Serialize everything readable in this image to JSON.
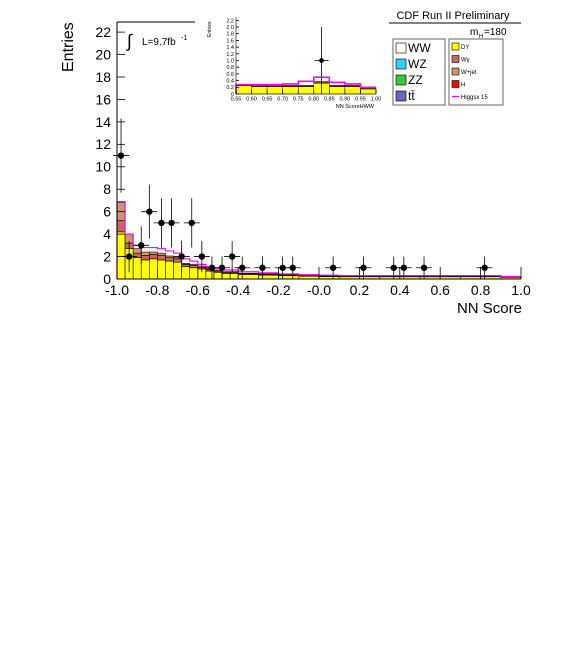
{
  "header": {
    "title": "CDF Run II Preliminary",
    "mass_label": "m",
    "mass_sub": "H",
    "mass_value": "=180"
  },
  "lumi": {
    "integral": "∫",
    "text": "L=9.7fb",
    "exp": "-1"
  },
  "legend": {
    "left": [
      {
        "label": "WW",
        "color": "#ffffff"
      },
      {
        "label": "WZ",
        "color": "#33ccff"
      },
      {
        "label": "ZZ",
        "color": "#33cc33"
      },
      {
        "label": "tt̄",
        "color": "#6666cc"
      }
    ],
    "right": [
      {
        "label": "DY",
        "color": "#ffff00"
      },
      {
        "label": "Wγ",
        "color": "#cc6666"
      },
      {
        "label": "W+jet",
        "color": "#cc9966"
      },
      {
        "label": "H",
        "color": "#ff0000"
      },
      {
        "label": "Higgsx 15",
        "color": "#ff00ff",
        "line": true
      }
    ]
  },
  "chart_data": [
    {
      "type": "bar",
      "xlabel": "NN Score",
      "ylabel": "Entries",
      "xlim": [
        -1.0,
        1.0
      ],
      "ylim": [
        0,
        22.5
      ],
      "xticks": [
        "-1.0",
        "-0.8",
        "-0.6",
        "-0.4",
        "-0.2",
        "-0.0",
        "0.2",
        "0.4",
        "0.6",
        "0.8",
        "1.0"
      ],
      "yticks": [
        "0",
        "2",
        "4",
        "6",
        "8",
        "10",
        "12",
        "14",
        "16",
        "18",
        "20",
        "22"
      ],
      "bin_edges": [
        -1.0,
        -0.96,
        -0.92,
        -0.88,
        -0.84,
        -0.8,
        -0.76,
        -0.72,
        -0.68,
        -0.64,
        -0.6,
        -0.56,
        -0.52,
        -0.48,
        -0.44,
        -0.4,
        -0.3,
        -0.2,
        -0.1,
        0.0,
        0.1,
        0.2,
        0.3,
        0.4,
        0.5,
        0.6,
        0.7,
        0.8,
        0.9,
        1.0
      ],
      "series": [
        {
          "name": "DY",
          "color": "#ffff00",
          "values": [
            4.2,
            2.7,
            1.9,
            1.7,
            1.8,
            1.7,
            1.6,
            1.5,
            1.1,
            1.0,
            0.9,
            0.7,
            0.6,
            0.5,
            0.5,
            0.4,
            0.35,
            0.3,
            0.25,
            0.22,
            0.2,
            0.2,
            0.2,
            0.2,
            0.2,
            0.2,
            0.2,
            0.2,
            0.15
          ]
        },
        {
          "name": "Wγ",
          "color": "#cc6666",
          "values": [
            1.0,
            0.5,
            0.4,
            0.4,
            0.4,
            0.4,
            0.3,
            0.3,
            0.2,
            0.2,
            0.15,
            0.15,
            0.1,
            0.1,
            0.1,
            0.08,
            0.07,
            0.06,
            0.05,
            0.05,
            0.04,
            0.04,
            0.04,
            0.04,
            0.04,
            0.04,
            0.04,
            0.04,
            0.03
          ]
        },
        {
          "name": "W+jet",
          "color": "#cc9966",
          "values": [
            1.6,
            0.8,
            0.4,
            0.3,
            0.2,
            0.2,
            0.15,
            0.15,
            0.1,
            0.1,
            0.1,
            0.08,
            0.06,
            0.05,
            0.05,
            0.04,
            0.04,
            0.03,
            0.03,
            0.03,
            0.02,
            0.02,
            0.02,
            0.02,
            0.02,
            0.02,
            0.02,
            0.02,
            0.02
          ]
        }
      ],
      "signal": {
        "name": "Higgsx 15",
        "color": "#ff00ff",
        "values": [
          6.9,
          4.0,
          3.0,
          2.8,
          2.8,
          2.7,
          2.5,
          2.3,
          1.8,
          1.6,
          1.3,
          1.1,
          0.9,
          0.8,
          0.8,
          0.65,
          0.55,
          0.45,
          0.38,
          0.34,
          0.3,
          0.3,
          0.3,
          0.3,
          0.3,
          0.3,
          0.3,
          0.3,
          0.22
        ]
      },
      "data_points": [
        {
          "x": -0.98,
          "y": 11,
          "err": 3.3
        },
        {
          "x": -0.94,
          "y": 2,
          "err": 1.4
        },
        {
          "x": -0.88,
          "y": 3,
          "err": 1.7
        },
        {
          "x": -0.84,
          "y": 6,
          "err": 2.4
        },
        {
          "x": -0.78,
          "y": 5,
          "err": 2.2
        },
        {
          "x": -0.73,
          "y": 5,
          "err": 2.2
        },
        {
          "x": -0.68,
          "y": 2,
          "err": 1.4
        },
        {
          "x": -0.63,
          "y": 5,
          "err": 2.2
        },
        {
          "x": -0.58,
          "y": 2,
          "err": 1.4
        },
        {
          "x": -0.53,
          "y": 1,
          "err": 1.0
        },
        {
          "x": -0.48,
          "y": 1,
          "err": 1.0
        },
        {
          "x": -0.43,
          "y": 2,
          "err": 1.4
        },
        {
          "x": -0.38,
          "y": 1,
          "err": 1.0
        },
        {
          "x": -0.28,
          "y": 1,
          "err": 1.0
        },
        {
          "x": -0.18,
          "y": 1,
          "err": 1.0
        },
        {
          "x": -0.13,
          "y": 1,
          "err": 1.0
        },
        {
          "x": 0.07,
          "y": 1,
          "err": 1.0
        },
        {
          "x": 0.22,
          "y": 1,
          "err": 1.0
        },
        {
          "x": 0.37,
          "y": 1,
          "err": 1.0
        },
        {
          "x": 0.42,
          "y": 1,
          "err": 1.0
        },
        {
          "x": 0.52,
          "y": 1,
          "err": 1.0
        },
        {
          "x": 0.82,
          "y": 1,
          "err": 1.0
        }
      ]
    },
    {
      "type": "bar",
      "xlabel": "NN ScoreHWW",
      "ylabel": "Entries",
      "xlim": [
        0.55,
        1.0
      ],
      "ylim": [
        0,
        2.3
      ],
      "xticks": [
        "0.55",
        "0.60",
        "0.65",
        "0.70",
        "0.75",
        "0.80",
        "0.85",
        "0.90",
        "0.95",
        "1.00"
      ],
      "yticks": [
        "0",
        "0.2",
        "0.4",
        "0.6",
        "0.8",
        "1.0",
        "1.2",
        "1.4",
        "1.6",
        "1.8",
        "2.0",
        "2.2"
      ],
      "bin_edges": [
        0.55,
        0.6,
        0.65,
        0.7,
        0.75,
        0.8,
        0.85,
        0.9,
        0.95,
        1.0
      ],
      "series": [
        {
          "name": "DY",
          "color": "#ffff00",
          "values": [
            0.25,
            0.22,
            0.22,
            0.22,
            0.22,
            0.32,
            0.22,
            0.22,
            0.15
          ]
        },
        {
          "name": "Wγ",
          "color": "#cc6666",
          "values": [
            0.02,
            0.02,
            0.02,
            0.02,
            0.02,
            0.03,
            0.02,
            0.02,
            0.02
          ]
        },
        {
          "name": "W+jet",
          "color": "#cc9966",
          "values": [
            0.02,
            0.02,
            0.02,
            0.02,
            0.02,
            0.03,
            0.02,
            0.02,
            0.02
          ]
        }
      ],
      "signal": {
        "name": "Higgsx 15",
        "color": "#ff00ff",
        "values": [
          0.28,
          0.28,
          0.28,
          0.3,
          0.38,
          0.5,
          0.35,
          0.3,
          0.2
        ]
      },
      "data_points": [
        {
          "x": 0.825,
          "y": 1.0,
          "err": 1.0
        }
      ]
    }
  ]
}
